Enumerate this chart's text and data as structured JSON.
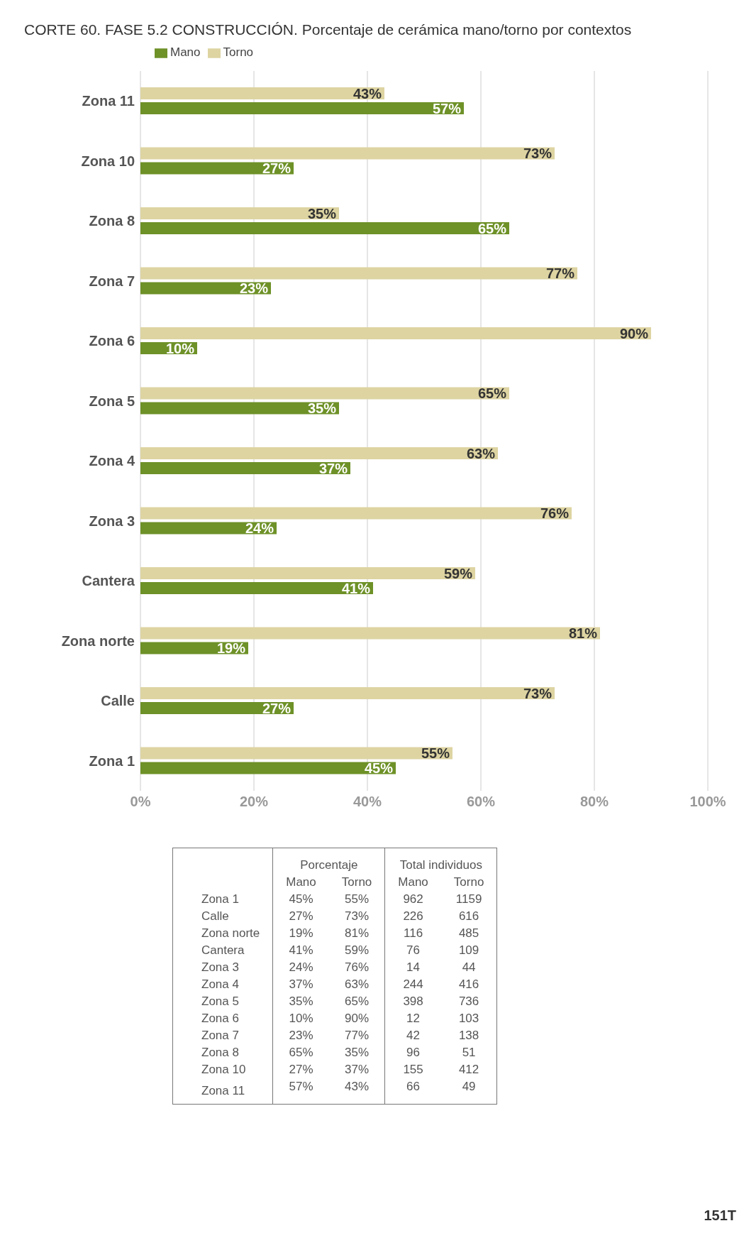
{
  "chart_data": [
    {
      "type": "bar",
      "orientation": "horizontal",
      "title": "CORTE 60. FASE 5.2 CONSTRUCCIÓN. Porcentaje de cerámica mano/torno por contextos",
      "categories": [
        "Zona 11",
        "Zona 10",
        "Zona 8",
        "Zona 7",
        "Zona 6",
        "Zona 5",
        "Zona 4",
        "Zona 3",
        "Cantera",
        "Zona norte",
        "Calle",
        "Zona 1"
      ],
      "series": [
        {
          "name": "Torno",
          "color": "#ddd4a2",
          "values": [
            43,
            73,
            35,
            77,
            90,
            65,
            63,
            76,
            59,
            81,
            73,
            55
          ],
          "value_labels": [
            "43%",
            "73%",
            "35%",
            "77%",
            "90%",
            "65%",
            "63%",
            "76%",
            "59%",
            "81%",
            "73%",
            "55%"
          ]
        },
        {
          "name": "Mano",
          "color": "#6e9128",
          "values": [
            57,
            27,
            65,
            23,
            10,
            35,
            37,
            24,
            41,
            19,
            27,
            45
          ],
          "value_labels": [
            "57%",
            "27%",
            "65%",
            "23%",
            "10%",
            "35%",
            "37%",
            "24%",
            "41%",
            "19%",
            "27%",
            "45%"
          ]
        }
      ],
      "xlim": [
        0,
        100
      ],
      "xticks": [
        {
          "value": 0,
          "label": "0%"
        },
        {
          "value": 20,
          "label": "20%"
        },
        {
          "value": 40,
          "label": "40%"
        },
        {
          "value": 60,
          "label": "60%"
        },
        {
          "value": 80,
          "label": "80%"
        },
        {
          "value": 100,
          "label": "100%"
        }
      ],
      "grid": "x",
      "legend": "top left",
      "annotations": [
        "151T"
      ]
    },
    {
      "type": "other",
      "categories": [
        "Zona 1",
        "Calle",
        "Zona norte",
        "Cantera",
        "Zona 3",
        "Zona 4",
        "Zona 5",
        "Zona 6",
        "Zona 7",
        "Zona 8",
        "Zona 10",
        "Zona 11"
      ],
      "annotations": [
        "Porcentaje",
        "Total individuos"
      ],
      "data_labels": true,
      "series": [
        {
          "name": "Mano",
          "values": [
            45,
            27,
            19,
            41,
            24,
            37,
            35,
            10,
            23,
            65,
            27,
            57
          ],
          "value_labels": [
            "45%",
            "27%",
            "19%",
            "41%",
            "24%",
            "37%",
            "35%",
            "10%",
            "23%",
            "65%",
            "27%",
            "57%"
          ]
        },
        {
          "name": "Torno",
          "values": [
            55,
            73,
            81,
            59,
            76,
            63,
            65,
            90,
            77,
            35,
            37,
            43
          ],
          "value_labels": [
            "55%",
            "73%",
            "81%",
            "59%",
            "76%",
            "63%",
            "65%",
            "90%",
            "77%",
            "35%",
            "37%",
            "43%"
          ]
        },
        {
          "name": "Mano",
          "values": [
            962,
            226,
            116,
            76,
            14,
            244,
            398,
            12,
            42,
            96,
            155,
            66
          ]
        },
        {
          "name": "Torno",
          "values": [
            1159,
            616,
            485,
            109,
            44,
            416,
            736,
            103,
            138,
            51,
            412,
            49
          ]
        }
      ]
    }
  ]
}
